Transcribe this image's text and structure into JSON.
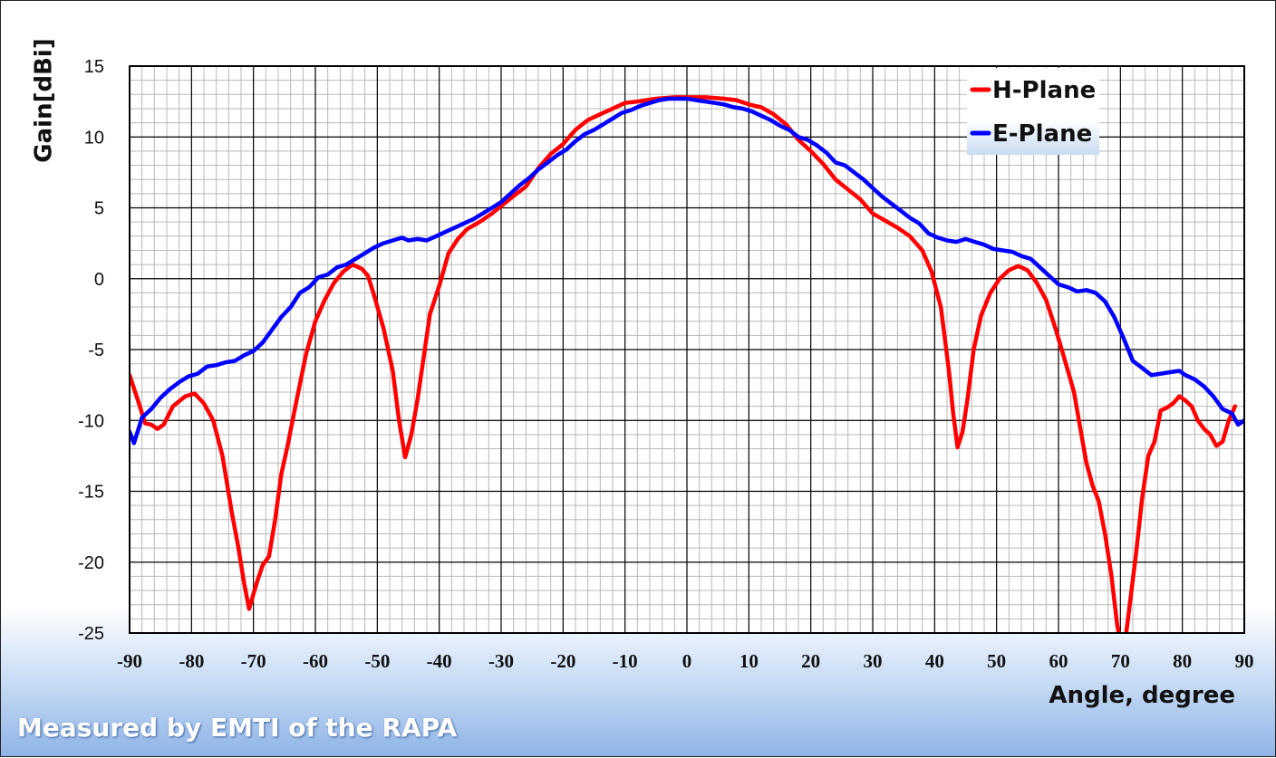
{
  "footer_note": "Measured by EMTI of the RAPA",
  "chart_data": {
    "type": "line",
    "title": "",
    "xlabel": "Angle, degree",
    "ylabel": "Gain[dBi]",
    "xlim": [
      -90,
      90
    ],
    "ylim": [
      -25,
      15
    ],
    "xticks": [
      -90,
      -80,
      -70,
      -60,
      -50,
      -40,
      -30,
      -20,
      -10,
      0,
      10,
      20,
      30,
      40,
      50,
      60,
      70,
      80,
      90
    ],
    "yticks": [
      15,
      10,
      5,
      0,
      -5,
      -10,
      -15,
      -20,
      -25
    ],
    "grid": true,
    "legend_position": "top-right",
    "series": [
      {
        "name": "H-Plane",
        "color": "#ff0000",
        "points": [
          [
            -90,
            -6.8
          ],
          [
            -88.5,
            -8.8
          ],
          [
            -87.5,
            -10.2
          ],
          [
            -86.5,
            -10.3
          ],
          [
            -85.5,
            -10.6
          ],
          [
            -84.5,
            -10.3
          ],
          [
            -83,
            -9.0
          ],
          [
            -81,
            -8.3
          ],
          [
            -79.5,
            -8.1
          ],
          [
            -78,
            -8.8
          ],
          [
            -76.5,
            -10.0
          ],
          [
            -75,
            -12.5
          ],
          [
            -73.5,
            -16.5
          ],
          [
            -72.5,
            -18.8
          ],
          [
            -71.5,
            -21.5
          ],
          [
            -70.7,
            -23.3
          ],
          [
            -69.5,
            -21.5
          ],
          [
            -68.5,
            -20.2
          ],
          [
            -67.5,
            -19.6
          ],
          [
            -66.5,
            -17.0
          ],
          [
            -65.5,
            -13.8
          ],
          [
            -64.5,
            -11.8
          ],
          [
            -63,
            -8.5
          ],
          [
            -61.5,
            -5.3
          ],
          [
            -60,
            -3.0
          ],
          [
            -58.5,
            -1.5
          ],
          [
            -57,
            -0.3
          ],
          [
            -55.5,
            0.5
          ],
          [
            -54,
            1.0
          ],
          [
            -52.5,
            0.7
          ],
          [
            -51.5,
            0.2
          ],
          [
            -50.5,
            -1.2
          ],
          [
            -49,
            -3.5
          ],
          [
            -47.5,
            -6.5
          ],
          [
            -46.5,
            -10.0
          ],
          [
            -45.5,
            -12.6
          ],
          [
            -44.5,
            -11.0
          ],
          [
            -43.5,
            -8.5
          ],
          [
            -42.5,
            -5.5
          ],
          [
            -41.5,
            -2.5
          ],
          [
            -40,
            -0.5
          ],
          [
            -38.5,
            1.8
          ],
          [
            -37,
            2.8
          ],
          [
            -35.5,
            3.5
          ],
          [
            -33.5,
            4.0
          ],
          [
            -31.5,
            4.6
          ],
          [
            -29.5,
            5.3
          ],
          [
            -27.5,
            6.0
          ],
          [
            -26,
            6.5
          ],
          [
            -24,
            7.8
          ],
          [
            -22,
            8.8
          ],
          [
            -20,
            9.5
          ],
          [
            -18,
            10.5
          ],
          [
            -16,
            11.2
          ],
          [
            -14,
            11.6
          ],
          [
            -12,
            12.0
          ],
          [
            -10,
            12.4
          ],
          [
            -8,
            12.5
          ],
          [
            -5,
            12.7
          ],
          [
            -2,
            12.8
          ],
          [
            0,
            12.8
          ],
          [
            3,
            12.8
          ],
          [
            6,
            12.7
          ],
          [
            8,
            12.6
          ],
          [
            10,
            12.3
          ],
          [
            12,
            12.1
          ],
          [
            14,
            11.6
          ],
          [
            16,
            10.9
          ],
          [
            18,
            9.8
          ],
          [
            20,
            9.0
          ],
          [
            22,
            8.1
          ],
          [
            24,
            7.0
          ],
          [
            26,
            6.3
          ],
          [
            28,
            5.6
          ],
          [
            30,
            4.6
          ],
          [
            32,
            4.1
          ],
          [
            34,
            3.6
          ],
          [
            36,
            3.0
          ],
          [
            38,
            2.0
          ],
          [
            39.5,
            0.5
          ],
          [
            41,
            -2.0
          ],
          [
            42.3,
            -6.5
          ],
          [
            43,
            -9.5
          ],
          [
            43.7,
            -11.9
          ],
          [
            44.5,
            -10.8
          ],
          [
            45.3,
            -8.5
          ],
          [
            46.3,
            -5.0
          ],
          [
            47.5,
            -2.6
          ],
          [
            49,
            -1.0
          ],
          [
            50.5,
            0.0
          ],
          [
            52,
            0.6
          ],
          [
            53.5,
            0.9
          ],
          [
            55,
            0.6
          ],
          [
            56.5,
            -0.3
          ],
          [
            58,
            -1.5
          ],
          [
            59.5,
            -3.5
          ],
          [
            61,
            -5.7
          ],
          [
            62.5,
            -8.0
          ],
          [
            63.5,
            -10.5
          ],
          [
            64.5,
            -13.0
          ],
          [
            65.5,
            -14.6
          ],
          [
            66.5,
            -15.7
          ],
          [
            67.5,
            -18.0
          ],
          [
            68.5,
            -20.8
          ],
          [
            69.5,
            -24.5
          ],
          [
            70,
            -25.5
          ],
          [
            70.8,
            -25.5
          ],
          [
            71.5,
            -23.0
          ],
          [
            72.5,
            -19.5
          ],
          [
            73.5,
            -15.5
          ],
          [
            74.5,
            -12.5
          ],
          [
            75.5,
            -11.5
          ],
          [
            76.5,
            -9.3
          ],
          [
            77.5,
            -9.1
          ],
          [
            78.5,
            -8.8
          ],
          [
            79.5,
            -8.3
          ],
          [
            80.5,
            -8.6
          ],
          [
            81.5,
            -9.0
          ],
          [
            82.5,
            -10.0
          ],
          [
            83.5,
            -10.6
          ],
          [
            84.5,
            -11.0
          ],
          [
            85.5,
            -11.8
          ],
          [
            86.5,
            -11.5
          ],
          [
            87.5,
            -10.0
          ],
          [
            88.5,
            -9.0
          ]
        ]
      },
      {
        "name": "E-Plane",
        "color": "#0000ff",
        "points": [
          [
            -90,
            -10.8
          ],
          [
            -89.3,
            -11.6
          ],
          [
            -88.5,
            -10.5
          ],
          [
            -88,
            -9.8
          ],
          [
            -86.5,
            -9.2
          ],
          [
            -85,
            -8.4
          ],
          [
            -83.5,
            -7.8
          ],
          [
            -82,
            -7.3
          ],
          [
            -80.5,
            -6.9
          ],
          [
            -79,
            -6.7
          ],
          [
            -77.5,
            -6.2
          ],
          [
            -76,
            -6.1
          ],
          [
            -74.5,
            -5.9
          ],
          [
            -73,
            -5.8
          ],
          [
            -71.5,
            -5.4
          ],
          [
            -70,
            -5.1
          ],
          [
            -68.5,
            -4.5
          ],
          [
            -67,
            -3.6
          ],
          [
            -65.5,
            -2.7
          ],
          [
            -64,
            -2.0
          ],
          [
            -62.5,
            -1.0
          ],
          [
            -61,
            -0.6
          ],
          [
            -59.5,
            0.1
          ],
          [
            -58,
            0.3
          ],
          [
            -56.5,
            0.8
          ],
          [
            -55,
            1.0
          ],
          [
            -53.5,
            1.4
          ],
          [
            -52,
            1.8
          ],
          [
            -50.5,
            2.2
          ],
          [
            -49,
            2.5
          ],
          [
            -47.5,
            2.7
          ],
          [
            -46,
            2.9
          ],
          [
            -45,
            2.7
          ],
          [
            -43.5,
            2.8
          ],
          [
            -42,
            2.7
          ],
          [
            -40.5,
            3.0
          ],
          [
            -39,
            3.3
          ],
          [
            -37.5,
            3.6
          ],
          [
            -36,
            3.9
          ],
          [
            -34.5,
            4.2
          ],
          [
            -33,
            4.6
          ],
          [
            -31.5,
            5.0
          ],
          [
            -30,
            5.4
          ],
          [
            -28.5,
            6.0
          ],
          [
            -27,
            6.6
          ],
          [
            -25.5,
            7.1
          ],
          [
            -24,
            7.7
          ],
          [
            -22.5,
            8.2
          ],
          [
            -21,
            8.7
          ],
          [
            -19.5,
            9.1
          ],
          [
            -18,
            9.7
          ],
          [
            -16.5,
            10.2
          ],
          [
            -15,
            10.5
          ],
          [
            -13.5,
            10.9
          ],
          [
            -12,
            11.3
          ],
          [
            -10.5,
            11.7
          ],
          [
            -9,
            11.9
          ],
          [
            -7.5,
            12.2
          ],
          [
            -6,
            12.4
          ],
          [
            -4.5,
            12.6
          ],
          [
            -3,
            12.7
          ],
          [
            -1.5,
            12.7
          ],
          [
            0,
            12.7
          ],
          [
            1.5,
            12.6
          ],
          [
            3,
            12.5
          ],
          [
            4.5,
            12.4
          ],
          [
            6,
            12.3
          ],
          [
            7.5,
            12.1
          ],
          [
            9,
            12.0
          ],
          [
            10.5,
            11.8
          ],
          [
            12,
            11.5
          ],
          [
            13.5,
            11.2
          ],
          [
            15,
            10.8
          ],
          [
            16.5,
            10.5
          ],
          [
            18,
            10.0
          ],
          [
            19.5,
            9.8
          ],
          [
            21,
            9.4
          ],
          [
            22.5,
            8.9
          ],
          [
            24,
            8.2
          ],
          [
            25.5,
            8.0
          ],
          [
            27,
            7.5
          ],
          [
            28.5,
            7.0
          ],
          [
            30,
            6.4
          ],
          [
            31.5,
            5.8
          ],
          [
            33,
            5.3
          ],
          [
            34.5,
            4.8
          ],
          [
            36,
            4.3
          ],
          [
            37.5,
            3.9
          ],
          [
            39,
            3.2
          ],
          [
            40.5,
            2.9
          ],
          [
            42,
            2.7
          ],
          [
            43.5,
            2.6
          ],
          [
            45,
            2.8
          ],
          [
            46.5,
            2.6
          ],
          [
            48,
            2.4
          ],
          [
            49.5,
            2.1
          ],
          [
            51,
            2.0
          ],
          [
            52.5,
            1.9
          ],
          [
            54,
            1.6
          ],
          [
            55.5,
            1.4
          ],
          [
            57,
            0.8
          ],
          [
            58.5,
            0.2
          ],
          [
            60,
            -0.4
          ],
          [
            61.5,
            -0.6
          ],
          [
            63,
            -0.9
          ],
          [
            64.5,
            -0.8
          ],
          [
            66,
            -1.0
          ],
          [
            67.5,
            -1.6
          ],
          [
            69,
            -2.7
          ],
          [
            70.5,
            -4.2
          ],
          [
            72,
            -5.8
          ],
          [
            73.5,
            -6.3
          ],
          [
            75,
            -6.8
          ],
          [
            76.5,
            -6.7
          ],
          [
            78,
            -6.6
          ],
          [
            79.5,
            -6.5
          ],
          [
            80.5,
            -6.8
          ],
          [
            82,
            -7.1
          ],
          [
            83.5,
            -7.6
          ],
          [
            85,
            -8.3
          ],
          [
            86.5,
            -9.2
          ],
          [
            88,
            -9.5
          ],
          [
            89,
            -10.3
          ],
          [
            90,
            -10.0
          ]
        ]
      }
    ]
  }
}
